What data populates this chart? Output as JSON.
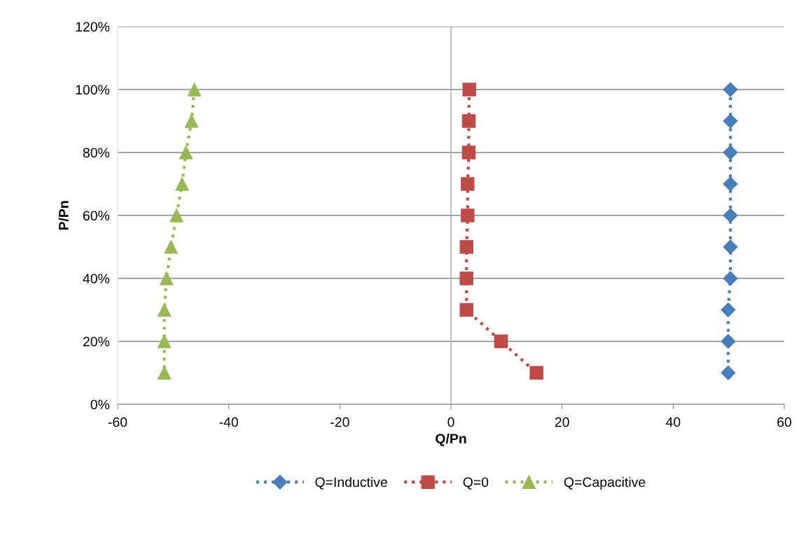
{
  "chart_data": {
    "type": "line",
    "xlabel": "Q/Pn",
    "ylabel": "P/Pn",
    "xlim": [
      -60,
      60
    ],
    "xticks": [
      -60,
      -40,
      -20,
      0,
      20,
      40,
      60
    ],
    "ylim": [
      0,
      120
    ],
    "yticks": [
      {
        "value": 0,
        "label": "0%"
      },
      {
        "value": 20,
        "label": "20%"
      },
      {
        "value": 40,
        "label": "40%"
      },
      {
        "value": 60,
        "label": "60%"
      },
      {
        "value": 80,
        "label": "80%"
      },
      {
        "value": 100,
        "label": "100%"
      },
      {
        "value": 120,
        "label": "120%"
      }
    ],
    "grid": "y",
    "legend": "bottom",
    "line_style": "dotted",
    "ref_lines": [
      {
        "axis": "x",
        "value": 0,
        "label": null,
        "color": "#a6a6a6"
      }
    ],
    "series": [
      {
        "name": "Q=Inductive",
        "color": "#4a7ebb",
        "marker": "diamond",
        "x": [
          50.3,
          50.3,
          50.3,
          50.3,
          50.3,
          50.3,
          50.3,
          49.9,
          49.9,
          49.9
        ],
        "values": [
          100,
          90,
          80,
          70,
          60,
          50,
          40,
          30,
          20,
          10
        ]
      },
      {
        "name": "Q=0",
        "color": "#be4b48",
        "marker": "square",
        "x": [
          3.3,
          3.2,
          3.2,
          3.0,
          3.0,
          2.8,
          2.8,
          2.8,
          9.0,
          15.4
        ],
        "values": [
          100,
          90,
          80,
          70,
          60,
          50,
          40,
          30,
          20,
          10
        ]
      },
      {
        "name": "Q=Capacitive",
        "color": "#98b954",
        "marker": "triangle",
        "x": [
          -46.2,
          -46.7,
          -47.7,
          -48.4,
          -49.4,
          -50.4,
          -51.2,
          -51.6,
          -51.6,
          -51.6
        ],
        "values": [
          100,
          90,
          80,
          70,
          60,
          50,
          40,
          30,
          20,
          10
        ]
      }
    ]
  }
}
